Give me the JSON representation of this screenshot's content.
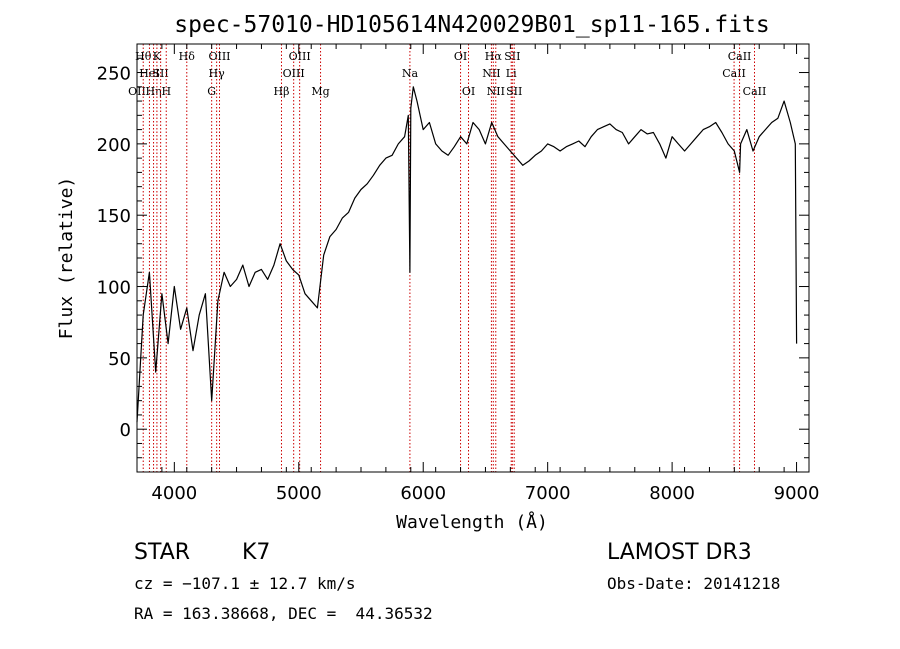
{
  "chart_data": {
    "type": "line",
    "title": "spec-57010-HD105614N420029B01_sp11-165.fits",
    "xlabel": "Wavelength (Å)",
    "ylabel": "Flux (relative)",
    "xlim": [
      3700,
      9100
    ],
    "ylim": [
      -30,
      270
    ],
    "xticks": [
      4000,
      5000,
      6000,
      7000,
      8000,
      9000
    ],
    "yticks": [
      0,
      50,
      100,
      150,
      200,
      250
    ],
    "xtick_labels": [
      "4000",
      "5000",
      "6000",
      "7000",
      "8000",
      "9000"
    ],
    "ytick_labels": [
      "0",
      "50",
      "100",
      "150",
      "200",
      "250"
    ],
    "grid": false,
    "line_color": "#000000",
    "marker_color": "#cc0000",
    "series": [
      {
        "name": "spectrum",
        "x": [
          3700,
          3750,
          3800,
          3850,
          3900,
          3950,
          4000,
          4050,
          4100,
          4150,
          4200,
          4250,
          4300,
          4350,
          4400,
          4450,
          4500,
          4550,
          4600,
          4650,
          4700,
          4750,
          4800,
          4850,
          4900,
          4950,
          5000,
          5050,
          5100,
          5150,
          5200,
          5250,
          5300,
          5350,
          5400,
          5450,
          5500,
          5550,
          5600,
          5650,
          5700,
          5750,
          5800,
          5850,
          5880,
          5893,
          5900,
          5920,
          5950,
          6000,
          6050,
          6100,
          6150,
          6200,
          6250,
          6300,
          6350,
          6400,
          6450,
          6500,
          6550,
          6600,
          6650,
          6700,
          6750,
          6800,
          6850,
          6900,
          6950,
          7000,
          7050,
          7100,
          7150,
          7200,
          7250,
          7300,
          7350,
          7400,
          7450,
          7500,
          7550,
          7600,
          7650,
          7700,
          7750,
          7800,
          7850,
          7900,
          7950,
          8000,
          8050,
          8100,
          8150,
          8200,
          8250,
          8300,
          8350,
          8400,
          8450,
          8500,
          8542,
          8550,
          8600,
          8650,
          8700,
          8750,
          8800,
          8850,
          8900,
          8950,
          8990,
          9000
        ],
        "values": [
          5,
          80,
          110,
          40,
          95,
          60,
          100,
          70,
          85,
          55,
          80,
          95,
          20,
          90,
          110,
          100,
          105,
          115,
          100,
          110,
          112,
          105,
          115,
          130,
          118,
          112,
          108,
          95,
          90,
          85,
          122,
          135,
          140,
          148,
          152,
          162,
          168,
          172,
          178,
          185,
          190,
          192,
          200,
          205,
          220,
          110,
          225,
          240,
          230,
          210,
          215,
          200,
          195,
          192,
          198,
          205,
          200,
          215,
          210,
          200,
          215,
          205,
          200,
          195,
          190,
          185,
          188,
          192,
          195,
          200,
          198,
          195,
          198,
          200,
          202,
          198,
          205,
          210,
          212,
          214,
          210,
          208,
          200,
          205,
          210,
          207,
          208,
          200,
          190,
          205,
          200,
          195,
          200,
          205,
          210,
          212,
          215,
          208,
          200,
          195,
          180,
          200,
          210,
          195,
          205,
          210,
          215,
          218,
          230,
          215,
          200,
          60
        ]
      }
    ],
    "line_markers": [
      {
        "x": 3700,
        "label": "OII",
        "tier": 2
      },
      {
        "x": 3750,
        "label": "Hθ",
        "tier": 0
      },
      {
        "x": 3800,
        "label": "HeI",
        "tier": 1
      },
      {
        "x": 3833,
        "label": "Hη",
        "tier": 2
      },
      {
        "x": 3860,
        "label": "K",
        "tier": 0
      },
      {
        "x": 3890,
        "label": "SII",
        "tier": 1
      },
      {
        "x": 3935,
        "label": "H",
        "tier": 2
      },
      {
        "x": 4100,
        "label": "Hδ",
        "tier": 0
      },
      {
        "x": 4300,
        "label": "G",
        "tier": 2
      },
      {
        "x": 4340,
        "label": "Hγ",
        "tier": 1
      },
      {
        "x": 4363,
        "label": "OIII",
        "tier": 0
      },
      {
        "x": 4861,
        "label": "Hβ",
        "tier": 2
      },
      {
        "x": 4959,
        "label": "OIII",
        "tier": 1
      },
      {
        "x": 5007,
        "label": "OIII",
        "tier": 0
      },
      {
        "x": 5175,
        "label": "Mg",
        "tier": 2
      },
      {
        "x": 5893,
        "label": "Na",
        "tier": 1
      },
      {
        "x": 6300,
        "label": "OI",
        "tier": 0
      },
      {
        "x": 6364,
        "label": "OI",
        "tier": 2
      },
      {
        "x": 6548,
        "label": "NII",
        "tier": 1
      },
      {
        "x": 6563,
        "label": "Hα",
        "tier": 0
      },
      {
        "x": 6583,
        "label": "NII",
        "tier": 2
      },
      {
        "x": 6707,
        "label": "Li",
        "tier": 1
      },
      {
        "x": 6716,
        "label": "SII",
        "tier": 0
      },
      {
        "x": 6731,
        "label": "SII",
        "tier": 2
      },
      {
        "x": 8498,
        "label": "CaII",
        "tier": 1
      },
      {
        "x": 8542,
        "label": "CaII",
        "tier": 0
      },
      {
        "x": 8662,
        "label": "CaII",
        "tier": 2
      }
    ]
  },
  "info": {
    "object_class": "STAR",
    "subclass": "K7",
    "survey": "LAMOST DR3",
    "redshift": "cz = −107.1 ± 12.7 km/s",
    "obs_date": "Obs-Date: 20141218",
    "coords": "RA = 163.38668, DEC =  44.36532"
  }
}
